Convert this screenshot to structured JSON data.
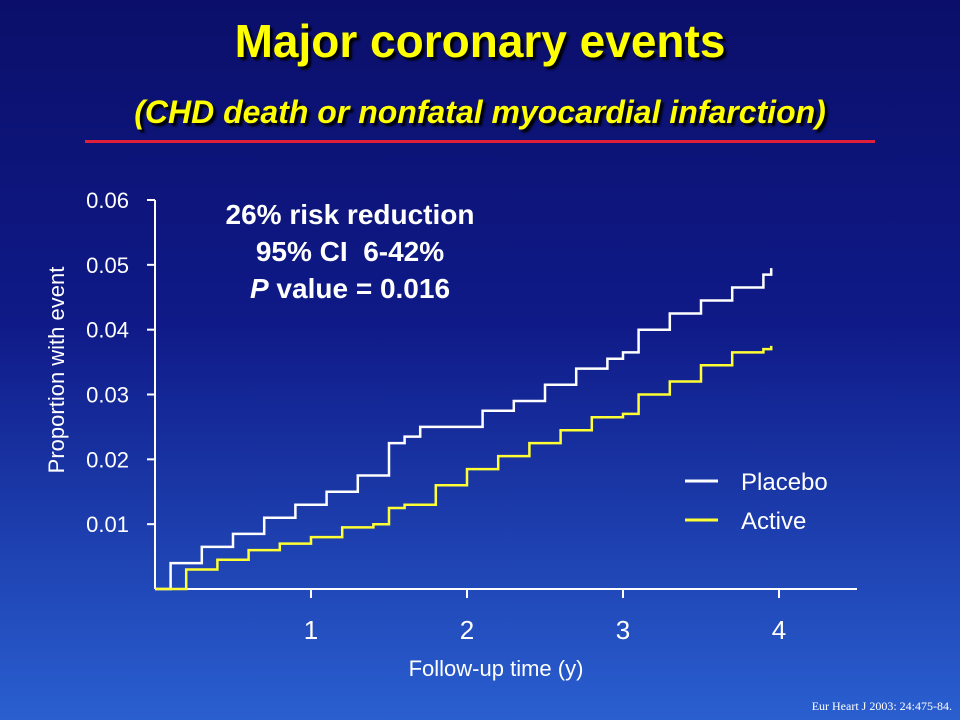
{
  "header": {
    "title": "Major coronary events",
    "subtitle": "(CHD death or nonfatal myocardial infarction)"
  },
  "annotation": {
    "line1": "26% risk reduction",
    "line2": "95% CI  6-42%",
    "line3_italic": "P",
    "line3_rest": " value = 0.016"
  },
  "citation": "Eur Heart J 2003: 24:475-84.",
  "chart_data": {
    "type": "line",
    "xlabel": "Follow-up time (y)",
    "ylabel": "Proportion with event",
    "xlim": [
      0,
      4.5
    ],
    "ylim": [
      0,
      0.06
    ],
    "x_ticks": [
      1,
      2,
      3,
      4
    ],
    "x_tick_labels": [
      "1",
      "2",
      "3",
      "4"
    ],
    "y_ticks": [
      0.01,
      0.02,
      0.03,
      0.04,
      0.05,
      0.06
    ],
    "y_tick_labels": [
      "0.01",
      "0.02",
      "0.03",
      "0.04",
      "0.05",
      "0.06"
    ],
    "grid": false,
    "legend_position": "bottom-right",
    "series": [
      {
        "name": "Placebo",
        "color": "#ffffff",
        "x": [
          0,
          0.1,
          0.3,
          0.5,
          0.7,
          0.9,
          1.1,
          1.3,
          1.5,
          1.6,
          1.7,
          1.9,
          2.1,
          2.3,
          2.5,
          2.7,
          2.9,
          3.0,
          3.1,
          3.3,
          3.5,
          3.7,
          3.9,
          3.95
        ],
        "y": [
          0,
          0.004,
          0.0065,
          0.0085,
          0.011,
          0.013,
          0.015,
          0.0175,
          0.0225,
          0.0235,
          0.025,
          0.025,
          0.0275,
          0.029,
          0.0315,
          0.034,
          0.0355,
          0.0365,
          0.04,
          0.0425,
          0.0445,
          0.0465,
          0.0485,
          0.0495
        ]
      },
      {
        "name": "Active",
        "color": "#ffff33",
        "x": [
          0,
          0.2,
          0.4,
          0.6,
          0.8,
          1.0,
          1.2,
          1.3,
          1.4,
          1.5,
          1.6,
          1.8,
          2.0,
          2.2,
          2.4,
          2.6,
          2.8,
          3.0,
          3.1,
          3.3,
          3.5,
          3.7,
          3.9,
          3.95
        ],
        "y": [
          0,
          0.003,
          0.0045,
          0.006,
          0.007,
          0.008,
          0.0095,
          0.0095,
          0.01,
          0.0125,
          0.013,
          0.016,
          0.0185,
          0.0205,
          0.0225,
          0.0245,
          0.0265,
          0.027,
          0.03,
          0.032,
          0.0345,
          0.0365,
          0.037,
          0.0375
        ]
      }
    ]
  }
}
